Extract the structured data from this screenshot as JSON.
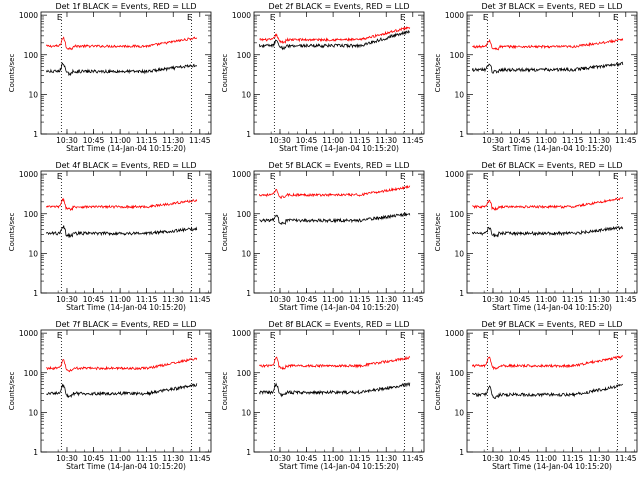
{
  "chart_data": {
    "type": "line",
    "panels": [
      {
        "title": "Det 1f BLACK = Events, RED = LLD",
        "black_base": 38,
        "red_base": 165,
        "bump": 1.6,
        "end_black": 55,
        "end_red": 270
      },
      {
        "title": "Det 2f BLACK = Events, RED = LLD",
        "black_base": 170,
        "red_base": 240,
        "bump": 1.3,
        "end_black": 400,
        "end_red": 500
      },
      {
        "title": "Det 3f BLACK = Events, RED = LLD",
        "black_base": 42,
        "red_base": 160,
        "bump": 1.4,
        "end_black": 60,
        "end_red": 240
      },
      {
        "title": "Det 4f BLACK = Events, RED = LLD",
        "black_base": 32,
        "red_base": 150,
        "bump": 1.5,
        "end_black": 42,
        "end_red": 220
      },
      {
        "title": "Det 5f BLACK = Events, RED = LLD",
        "black_base": 68,
        "red_base": 300,
        "bump": 1.3,
        "end_black": 100,
        "end_red": 480
      },
      {
        "title": "Det 6f BLACK = Events, RED = LLD",
        "black_base": 32,
        "red_base": 150,
        "bump": 1.4,
        "end_black": 45,
        "end_red": 250
      },
      {
        "title": "Det 7f BLACK = Events, RED = LLD",
        "black_base": 30,
        "red_base": 130,
        "bump": 1.6,
        "end_black": 50,
        "end_red": 230
      },
      {
        "title": "Det 8f BLACK = Events, RED = LLD",
        "black_base": 32,
        "red_base": 150,
        "bump": 1.6,
        "end_black": 52,
        "end_red": 240
      },
      {
        "title": "Det 9f BLACK = Events, RED = LLD",
        "black_base": 28,
        "red_base": 150,
        "bump": 1.6,
        "end_black": 48,
        "end_red": 260
      }
    ],
    "series": [
      {
        "name": "Events",
        "color": "#000000"
      },
      {
        "name": "LLD",
        "color": "#ff0000"
      }
    ],
    "x_tick_labels": [
      "10:30",
      "10:45",
      "11:00",
      "11:15",
      "11:30",
      "11:45"
    ],
    "x_ticks_minutes": [
      14.67,
      29.67,
      44.67,
      59.67,
      74.67,
      89.67
    ],
    "x_range_minutes": [
      0,
      96
    ],
    "data_end_minutes": 88,
    "markers_minutes": [
      11.5,
      85
    ],
    "marker_labels": [
      "E",
      "E"
    ],
    "y_tick_labels": [
      "1",
      "10",
      "100",
      "1000"
    ],
    "y_tick_values": [
      1,
      10,
      100,
      1000
    ],
    "y_range": [
      1,
      1200
    ],
    "y_scale": "log",
    "xlabel": "Start Time (14-Jan-04 10:15:20)",
    "ylabel": "Counts/sec"
  }
}
